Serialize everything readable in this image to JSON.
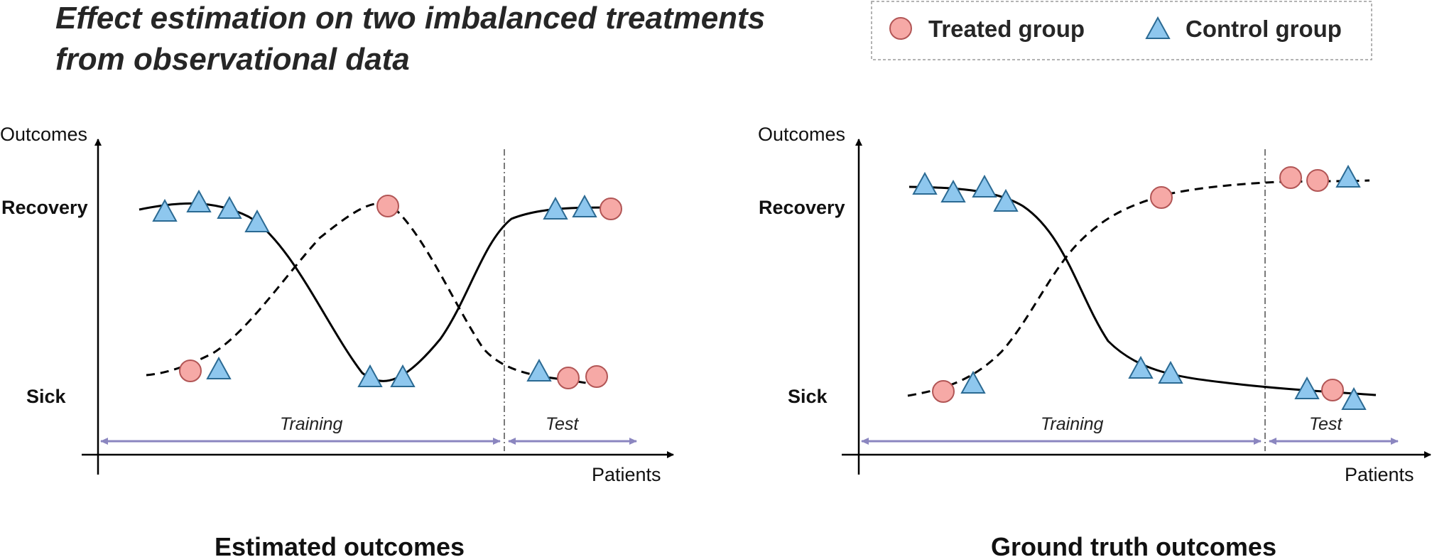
{
  "title_lines": [
    "Effect estimation on two imbalanced treatments",
    "from observational data"
  ],
  "legend": {
    "treated_label": "Treated group",
    "control_label": "Control group",
    "treated_icon": "circle-marker-icon",
    "control_icon": "triangle-marker-icon"
  },
  "colors": {
    "treated_fill": "#f6a9a6",
    "treated_stroke": "#b25656",
    "control_fill": "#8ec7ee",
    "control_stroke": "#2b6a93",
    "split_arrow": "#8b86c0",
    "curve": "#000000"
  },
  "panels": [
    {
      "caption": "Estimated outcomes",
      "y_axis_label": "Outcomes",
      "x_axis_label": "Patients",
      "y_ticks": [
        "Recovery",
        "Sick"
      ],
      "train_label": "Training",
      "test_label": "Test"
    },
    {
      "caption": "Ground truth outcomes",
      "y_axis_label": "Outcomes",
      "x_axis_label": "Patients",
      "y_ticks": [
        "Recovery",
        "Sick"
      ],
      "train_label": "Training",
      "test_label": "Test"
    }
  ]
}
